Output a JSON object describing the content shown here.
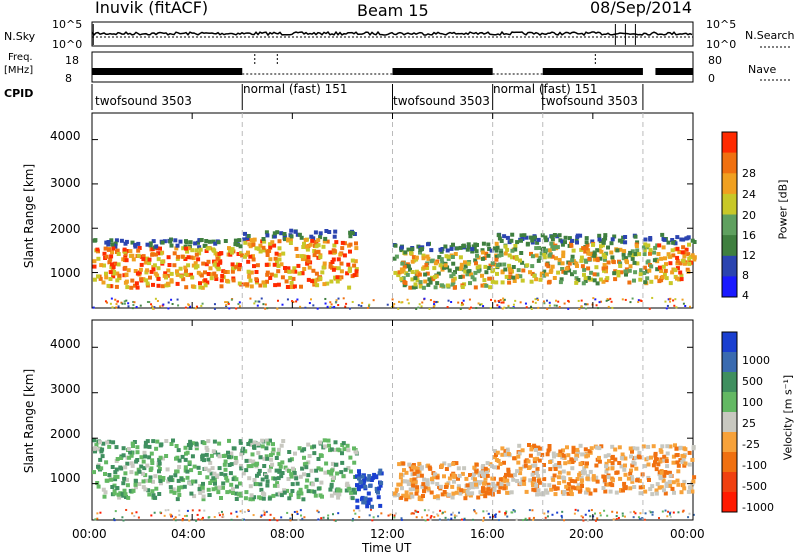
{
  "header": {
    "station": "Inuvik (fitACF)",
    "beam": "Beam 15",
    "date": "08/Sep/2014"
  },
  "summary_panels": {
    "sky": {
      "label": "N.Sky",
      "ticks": [
        "10^5",
        "10^0"
      ],
      "right_label": "N.Search",
      "right_ticks": [
        "10^5",
        "10^0"
      ]
    },
    "freq": {
      "label_line1": "Freq.",
      "label_line2": "[MHz]",
      "ticks": [
        "18",
        "8"
      ],
      "right_label": "Nave",
      "right_ticks": [
        "80",
        "0"
      ]
    },
    "cpid": {
      "label": "CPID"
    }
  },
  "cpid_segments": [
    {
      "name": "twofsound 3503",
      "start_h": 0.0,
      "end_h": 6.0
    },
    {
      "name": "normal (fast) 151",
      "start_h": 6.0,
      "end_h": 12.0
    },
    {
      "name": "twofsound 3503",
      "start_h": 12.0,
      "end_h": 16.0
    },
    {
      "name": "normal (fast) 151",
      "start_h": 16.0,
      "end_h": 18.0
    },
    {
      "name": "twofsound 3503",
      "start_h": 18.0,
      "end_h": 22.0
    }
  ],
  "chart_data": [
    {
      "type": "heatmap",
      "parameter": "power",
      "ylabel": "Slant Range [km]",
      "yticks": [
        "1000",
        "2000",
        "3000",
        "4000"
      ],
      "ylim": [
        200,
        4600
      ],
      "xlim_hours": [
        0,
        24
      ],
      "colorbar_label": "Power [dB]",
      "colorbar_ticks": [
        "4",
        "8",
        "12",
        "16",
        "20",
        "24",
        "28"
      ],
      "colorbar_colors": [
        "#1a1aff",
        "#2b44b0",
        "#3f7f3f",
        "#5fa05f",
        "#c8c828",
        "#f0a020",
        "#f07010",
        "#ff2a00"
      ],
      "backscatter_bands": [
        {
          "start_h": 0.0,
          "end_h": 6.0,
          "range_km": [
            700,
            1800
          ],
          "level": "strong"
        },
        {
          "start_h": 6.0,
          "end_h": 10.5,
          "range_km": [
            700,
            2000
          ],
          "level": "strong"
        },
        {
          "start_h": 12.0,
          "end_h": 16.0,
          "range_km": [
            700,
            1700
          ],
          "level": "moderate"
        },
        {
          "start_h": 16.0,
          "end_h": 22.5,
          "range_km": [
            800,
            1900
          ],
          "level": "moderate"
        },
        {
          "start_h": 22.5,
          "end_h": 24.0,
          "range_km": [
            800,
            1900
          ],
          "level": "strong"
        }
      ]
    },
    {
      "type": "heatmap",
      "parameter": "velocity",
      "ylabel": "Slant Range [km]",
      "yticks": [
        "1000",
        "2000",
        "3000",
        "4000"
      ],
      "ylim": [
        200,
        4600
      ],
      "xlim_hours": [
        0,
        24
      ],
      "xticks": [
        "00:00",
        "04:00",
        "08:00",
        "12:00",
        "16:00",
        "20:00",
        "00:00"
      ],
      "xlabel": "Time UT",
      "colorbar_label": "Velocity [m s⁻¹]",
      "colorbar_ticks": [
        "1000",
        "500",
        "100",
        "25",
        "-25",
        "-100",
        "-500",
        "-1000"
      ],
      "colorbar_colors": [
        "#1a3fd0",
        "#3a6bb0",
        "#3f8f5f",
        "#63b863",
        "#c8c8c0",
        "#f7a23a",
        "#f07010",
        "#f04010",
        "#ff1a00"
      ],
      "backscatter_bands": [
        {
          "start_h": 0.0,
          "end_h": 10.5,
          "range_km": [
            700,
            2000
          ],
          "sign": "positive"
        },
        {
          "start_h": 10.5,
          "end_h": 11.5,
          "range_km": [
            500,
            1400
          ],
          "sign": "fast positive"
        },
        {
          "start_h": 12.0,
          "end_h": 16.0,
          "range_km": [
            700,
            1500
          ],
          "sign": "negative"
        },
        {
          "start_h": 16.0,
          "end_h": 24.0,
          "range_km": [
            800,
            1900
          ],
          "sign": "negative"
        }
      ]
    }
  ]
}
